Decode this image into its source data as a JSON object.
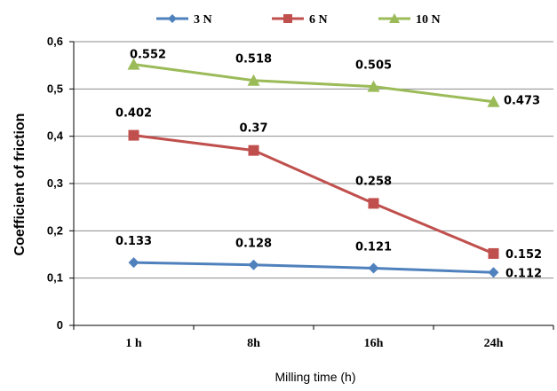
{
  "chart_data": {
    "type": "line",
    "categories": [
      "1 h",
      "8h",
      "16h",
      "24h"
    ],
    "xlabel": "Milling time (h)",
    "ylabel": "Coefficient of friction",
    "ylim": [
      0,
      0.6
    ],
    "yticks": [
      {
        "value": 0,
        "label": "0"
      },
      {
        "value": 0.1,
        "label": "0,1"
      },
      {
        "value": 0.2,
        "label": "0,2"
      },
      {
        "value": 0.3,
        "label": "0,3"
      },
      {
        "value": 0.4,
        "label": "0,4"
      },
      {
        "value": 0.5,
        "label": "0,5"
      },
      {
        "value": 0.6,
        "label": "0,6"
      }
    ],
    "grid": "horizontal",
    "legend_position": "top",
    "series": [
      {
        "name": "3 N",
        "color": "#4f81bd",
        "marker": "diamond",
        "values": [
          0.133,
          0.128,
          0.121,
          0.112
        ],
        "labels": [
          "0.133",
          "0.128",
          "0.121",
          "0.112"
        ]
      },
      {
        "name": "6 N",
        "color": "#c0504d",
        "marker": "square",
        "values": [
          0.402,
          0.37,
          0.258,
          0.152
        ],
        "labels": [
          "0.402",
          "0.37",
          "0.258",
          "0.152"
        ]
      },
      {
        "name": "10 N",
        "color": "#9bbb59",
        "marker": "triangle",
        "values": [
          0.552,
          0.518,
          0.505,
          0.473
        ],
        "labels": [
          "0.552",
          "0.518",
          "0.505",
          "0.473"
        ]
      }
    ]
  }
}
